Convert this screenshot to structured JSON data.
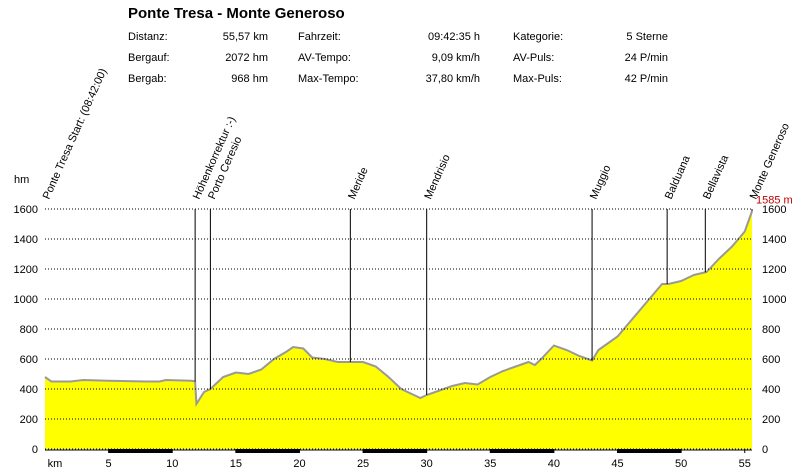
{
  "title": "Ponte Tresa - Monte Generoso",
  "stats": [
    [
      {
        "label": "Distanz:",
        "value": "55,57 km"
      },
      {
        "label": "Fahrzeit:",
        "value": "09:42:35 h"
      },
      {
        "label": "Kategorie:",
        "value": "5 Sterne"
      }
    ],
    [
      {
        "label": "Bergauf:",
        "value": "2072 hm"
      },
      {
        "label": "AV-Tempo:",
        "value": "9,09 km/h"
      },
      {
        "label": "AV-Puls:",
        "value": "24 P/min"
      }
    ],
    [
      {
        "label": "Bergab:",
        "value": "968 hm"
      },
      {
        "label": "Max-Tempo:",
        "value": "37,80 km/h"
      },
      {
        "label": "Max-Puls:",
        "value": "42 P/min"
      }
    ]
  ],
  "chart_data": {
    "type": "area",
    "xlabel": "km",
    "ylabel": "hm",
    "color": "#ffff00",
    "line_color": "#999999",
    "grid": true,
    "xlim": [
      0,
      55.57
    ],
    "ylim": [
      0,
      1600
    ],
    "xticks": [
      5,
      10,
      15,
      20,
      25,
      30,
      35,
      40,
      45,
      50,
      55
    ],
    "yticks": [
      0,
      200,
      400,
      600,
      800,
      1000,
      1200,
      1400,
      1600
    ],
    "x": [
      0,
      0.5,
      2,
      3,
      5,
      8,
      9,
      9.5,
      11.5,
      11.8,
      11.9,
      12.5,
      13,
      14,
      15,
      16,
      17,
      18,
      19,
      19.5,
      20.3,
      21,
      22,
      23,
      24,
      25,
      26,
      27,
      28,
      29,
      29.5,
      30,
      31,
      32,
      33,
      34,
      35,
      36,
      37,
      38,
      38.5,
      39,
      40,
      41,
      42,
      43,
      43.5,
      44,
      45,
      46,
      47,
      48,
      48.5,
      49,
      50,
      51,
      52,
      53,
      54,
      55,
      55.57
    ],
    "values": [
      480,
      450,
      450,
      460,
      455,
      450,
      450,
      460,
      455,
      450,
      300,
      380,
      400,
      480,
      510,
      500,
      530,
      600,
      650,
      680,
      670,
      610,
      600,
      580,
      580,
      580,
      550,
      480,
      400,
      360,
      340,
      360,
      390,
      420,
      440,
      430,
      480,
      520,
      550,
      580,
      560,
      600,
      690,
      660,
      620,
      590,
      660,
      690,
      750,
      850,
      950,
      1050,
      1100,
      1100,
      1120,
      1160,
      1180,
      1270,
      1350,
      1450,
      1585
    ],
    "end_label": {
      "value": 1585,
      "label": "1585 m"
    },
    "waypoints": [
      {
        "label": "Ponte Tresa Start: (08:42:00)",
        "km": 0
      },
      {
        "label": "Höhenkorrektur :-)",
        "km": 11.8
      },
      {
        "label": "Porto Ceresio",
        "km": 13.0
      },
      {
        "label": "Meride",
        "km": 24.0
      },
      {
        "label": "Mendrisio",
        "km": 30.0
      },
      {
        "label": "Muggio",
        "km": 43.0
      },
      {
        "label": "Balduana",
        "km": 48.9
      },
      {
        "label": "Bellavista",
        "km": 51.9
      },
      {
        "label": "Monte Generoso",
        "km": 55.57
      }
    ]
  }
}
